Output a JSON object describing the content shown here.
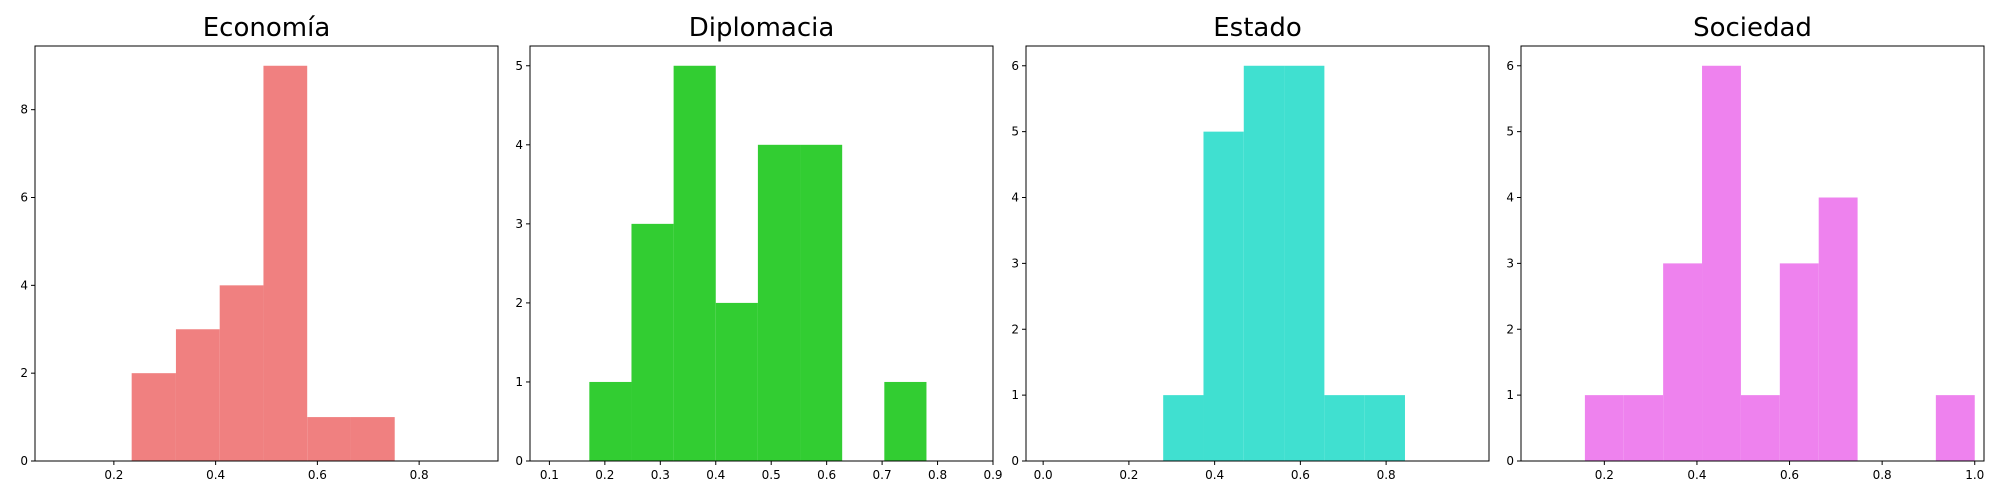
{
  "chart_data": [
    {
      "type": "bar",
      "title": "Economía",
      "color": "#f08080",
      "xlim": [
        0.045,
        0.955
      ],
      "ylim": [
        0,
        9.45
      ],
      "xticks": [
        0.2,
        0.4,
        0.6,
        0.8
      ],
      "yticks": [
        0,
        2,
        4,
        6,
        8
      ],
      "bins": [
        {
          "x0": 0.235,
          "x1": 0.322,
          "count": 2
        },
        {
          "x0": 0.322,
          "x1": 0.408,
          "count": 3
        },
        {
          "x0": 0.408,
          "x1": 0.494,
          "count": 4
        },
        {
          "x0": 0.494,
          "x1": 0.58,
          "count": 9
        },
        {
          "x0": 0.58,
          "x1": 0.666,
          "count": 1
        },
        {
          "x0": 0.666,
          "x1": 0.752,
          "count": 1
        }
      ]
    },
    {
      "type": "bar",
      "title": "Diplomacia",
      "color": "#32cd32",
      "xlim": [
        0.065,
        0.9
      ],
      "ylim": [
        0,
        5.25
      ],
      "xticks": [
        0.1,
        0.2,
        0.3,
        0.4,
        0.5,
        0.6,
        0.7,
        0.8,
        0.9
      ],
      "yticks": [
        0,
        1,
        2,
        3,
        4,
        5
      ],
      "bins": [
        {
          "x0": 0.172,
          "x1": 0.248,
          "count": 1
        },
        {
          "x0": 0.248,
          "x1": 0.324,
          "count": 3
        },
        {
          "x0": 0.324,
          "x1": 0.4,
          "count": 5
        },
        {
          "x0": 0.4,
          "x1": 0.476,
          "count": 2
        },
        {
          "x0": 0.476,
          "x1": 0.552,
          "count": 4
        },
        {
          "x0": 0.552,
          "x1": 0.628,
          "count": 4
        },
        {
          "x0": 0.704,
          "x1": 0.78,
          "count": 1
        }
      ]
    },
    {
      "type": "bar",
      "title": "Estado",
      "color": "#40e0d0",
      "xlim": [
        -0.04,
        1.04
      ],
      "ylim": [
        0,
        6.3
      ],
      "xticks": [
        0.0,
        0.2,
        0.4,
        0.6,
        0.8
      ],
      "yticks": [
        0,
        1,
        2,
        3,
        4,
        5,
        6
      ],
      "bins": [
        {
          "x0": 0.28,
          "x1": 0.374,
          "count": 1
        },
        {
          "x0": 0.374,
          "x1": 0.468,
          "count": 5
        },
        {
          "x0": 0.468,
          "x1": 0.562,
          "count": 6
        },
        {
          "x0": 0.562,
          "x1": 0.656,
          "count": 6
        },
        {
          "x0": 0.656,
          "x1": 0.75,
          "count": 1
        },
        {
          "x0": 0.75,
          "x1": 0.844,
          "count": 1
        }
      ]
    },
    {
      "type": "bar",
      "title": "Sociedad",
      "color": "#ee82ee",
      "xlim": [
        0.02,
        1.02
      ],
      "ylim": [
        0,
        6.3
      ],
      "xticks": [
        0.2,
        0.4,
        0.6,
        0.8,
        1.0
      ],
      "yticks": [
        0,
        1,
        2,
        3,
        4,
        5,
        6
      ],
      "bins": [
        {
          "x0": 0.158,
          "x1": 0.242,
          "count": 1
        },
        {
          "x0": 0.242,
          "x1": 0.327,
          "count": 1
        },
        {
          "x0": 0.327,
          "x1": 0.411,
          "count": 3
        },
        {
          "x0": 0.411,
          "x1": 0.495,
          "count": 6
        },
        {
          "x0": 0.495,
          "x1": 0.579,
          "count": 1
        },
        {
          "x0": 0.579,
          "x1": 0.663,
          "count": 3
        },
        {
          "x0": 0.663,
          "x1": 0.747,
          "count": 4
        },
        {
          "x0": 0.916,
          "x1": 1.0,
          "count": 1
        }
      ]
    }
  ]
}
